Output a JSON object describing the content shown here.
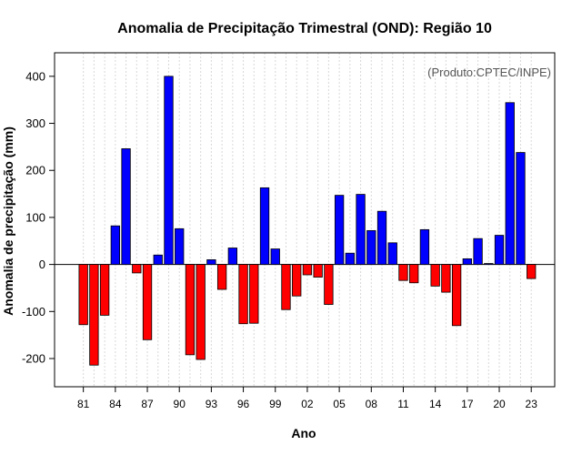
{
  "chart_data": {
    "type": "bar",
    "title": "Anomalia de Precipitação Trimestral (OND): Região 10",
    "xlabel": "Ano",
    "ylabel": "Anomalia de precipitação (mm)",
    "annotation": "(Produto:CPTEC/INPE)",
    "ylim": [
      -260,
      450
    ],
    "yticks": [
      -200,
      -100,
      0,
      100,
      200,
      300,
      400
    ],
    "xtick_years": [
      1981,
      1984,
      1987,
      1990,
      1993,
      1996,
      1999,
      2002,
      2005,
      2008,
      2011,
      2014,
      2017,
      2020,
      2023
    ],
    "xtick_labels": [
      "81",
      "84",
      "87",
      "90",
      "93",
      "96",
      "99",
      "02",
      "05",
      "08",
      "11",
      "14",
      "17",
      "20",
      "23"
    ],
    "grid": true,
    "colors": {
      "positive": "#0000ff",
      "negative": "#ff0000",
      "grid": "#d8d8d8"
    },
    "years": [
      1981,
      1982,
      1983,
      1984,
      1985,
      1986,
      1987,
      1988,
      1989,
      1990,
      1991,
      1992,
      1993,
      1994,
      1995,
      1996,
      1997,
      1998,
      1999,
      2000,
      2001,
      2002,
      2003,
      2004,
      2005,
      2006,
      2007,
      2008,
      2009,
      2010,
      2011,
      2012,
      2013,
      2014,
      2015,
      2016,
      2017,
      2018,
      2019,
      2020,
      2021,
      2022,
      2023
    ],
    "values": [
      -128,
      -214,
      -108,
      82,
      246,
      -18,
      -160,
      20,
      400,
      76,
      -192,
      -202,
      10,
      -53,
      35,
      -126,
      -125,
      163,
      33,
      -96,
      -67,
      -22,
      -27,
      -85,
      147,
      24,
      149,
      72,
      113,
      46,
      -34,
      -39,
      74,
      -46,
      -59,
      -130,
      12,
      55,
      2,
      62,
      344,
      238,
      -30
    ]
  }
}
